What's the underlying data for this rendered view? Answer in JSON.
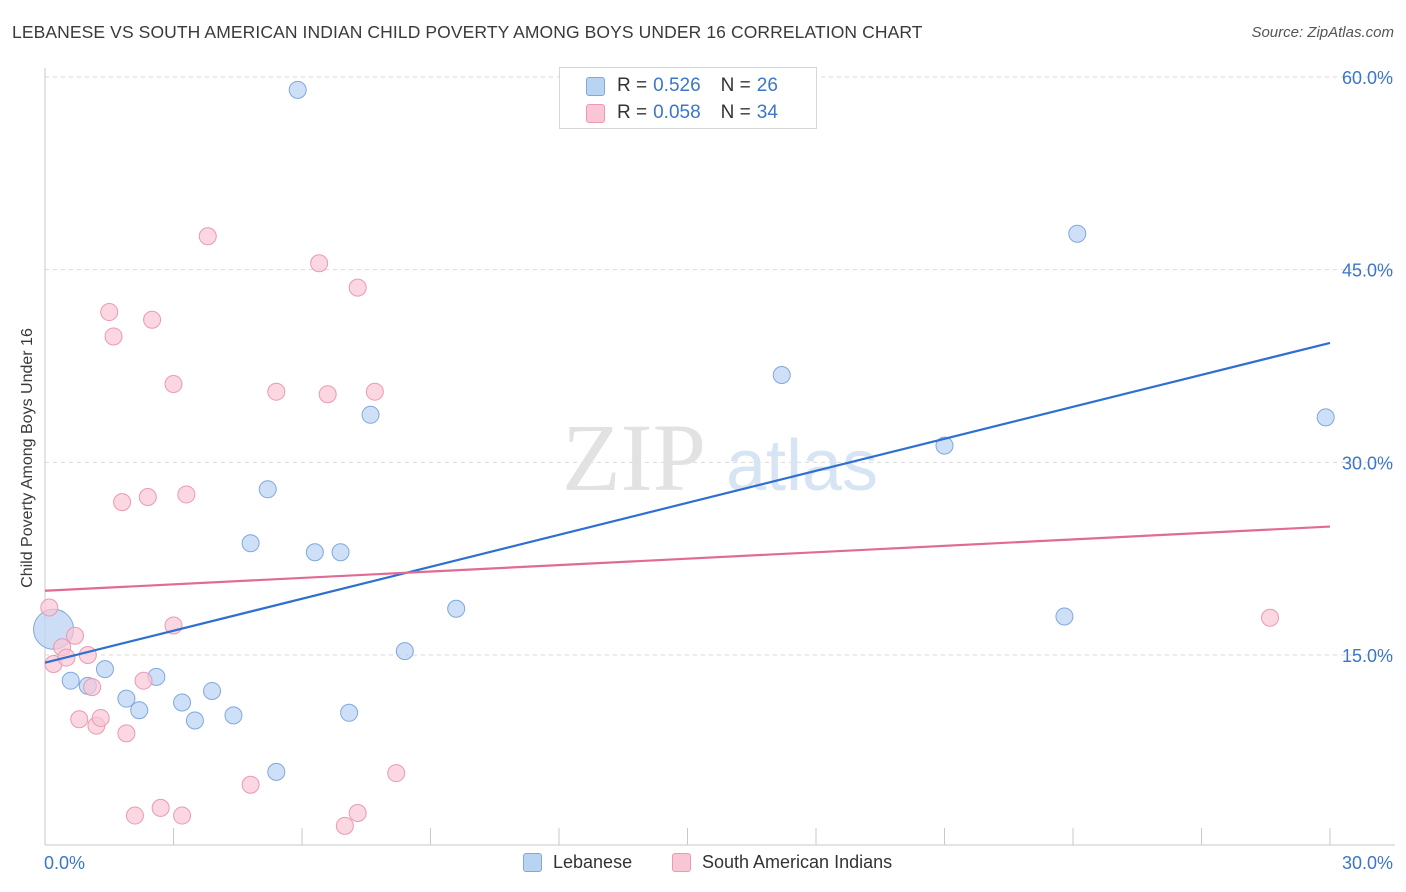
{
  "title": "LEBANESE VS SOUTH AMERICAN INDIAN CHILD POVERTY AMONG BOYS UNDER 16 CORRELATION CHART",
  "source": "Source: ZipAtlas.com",
  "watermark": {
    "zip": "ZIP",
    "atlas": "atlas"
  },
  "legend": {
    "rows": [
      {
        "r_label": "R =",
        "r_value": "0.526",
        "n_label": "N =",
        "n_value": "26"
      },
      {
        "r_label": "R =",
        "r_value": "0.058",
        "n_label": "N =",
        "n_value": "34"
      }
    ]
  },
  "bottom_legend": {
    "series1": "Lebanese",
    "series2": "South American Indians"
  },
  "colors": {
    "blue_fill": "#b9d3f3",
    "blue_stroke": "#7fa8dc",
    "blue_line": "#2f6fcf",
    "pink_fill": "#f8c6d4",
    "pink_stroke": "#ec99b2",
    "pink_line": "#e06b95",
    "tick_label": "#3b76c9",
    "grid": "#d9d9d9"
  },
  "chart_data": {
    "type": "scatter",
    "title": "LEBANESE VS SOUTH AMERICAN INDIAN CHILD POVERTY AMONG BOYS UNDER 16 CORRELATION CHART",
    "xlabel": "",
    "ylabel": "Child Poverty Among Boys Under 16",
    "xlim": [
      0,
      30
    ],
    "ylim": [
      0,
      63
    ],
    "x_tick_labels": [
      "0.0%",
      "30.0%"
    ],
    "y_ticks": [
      15,
      30,
      45,
      60
    ],
    "y_tick_labels": [
      "15.0%",
      "30.0%",
      "45.0%",
      "60.0%"
    ],
    "series": [
      {
        "name": "Lebanese",
        "R": 0.526,
        "N": 26,
        "trend": {
          "x": [
            0,
            30
          ],
          "y": [
            14.4,
            39.3
          ]
        },
        "points": [
          {
            "x": 0.2,
            "y": 17.0,
            "big": true
          },
          {
            "x": 0.6,
            "y": 13.0
          },
          {
            "x": 1.0,
            "y": 12.6
          },
          {
            "x": 1.4,
            "y": 13.9
          },
          {
            "x": 1.9,
            "y": 11.6
          },
          {
            "x": 2.2,
            "y": 10.7
          },
          {
            "x": 2.6,
            "y": 13.3
          },
          {
            "x": 3.2,
            "y": 11.3
          },
          {
            "x": 3.5,
            "y": 9.9
          },
          {
            "x": 3.9,
            "y": 12.2
          },
          {
            "x": 4.4,
            "y": 10.3
          },
          {
            "x": 4.8,
            "y": 23.7
          },
          {
            "x": 5.2,
            "y": 27.9
          },
          {
            "x": 5.4,
            "y": 5.9
          },
          {
            "x": 5.9,
            "y": 59.0
          },
          {
            "x": 6.3,
            "y": 23.0
          },
          {
            "x": 6.9,
            "y": 23.0
          },
          {
            "x": 7.1,
            "y": 10.5
          },
          {
            "x": 7.6,
            "y": 33.7
          },
          {
            "x": 8.4,
            "y": 15.3
          },
          {
            "x": 9.6,
            "y": 18.6
          },
          {
            "x": 17.2,
            "y": 36.8
          },
          {
            "x": 21.0,
            "y": 31.3
          },
          {
            "x": 23.8,
            "y": 18.0
          },
          {
            "x": 24.1,
            "y": 47.8
          },
          {
            "x": 29.9,
            "y": 33.5
          }
        ]
      },
      {
        "name": "South American Indians",
        "R": 0.058,
        "N": 34,
        "trend": {
          "x": [
            0,
            30
          ],
          "y": [
            20.0,
            25.0
          ]
        },
        "points": [
          {
            "x": 0.1,
            "y": 18.7
          },
          {
            "x": 0.2,
            "y": 14.3
          },
          {
            "x": 0.4,
            "y": 15.6
          },
          {
            "x": 0.5,
            "y": 14.8
          },
          {
            "x": 0.7,
            "y": 16.5
          },
          {
            "x": 0.8,
            "y": 10.0
          },
          {
            "x": 1.0,
            "y": 15.0
          },
          {
            "x": 1.1,
            "y": 12.5
          },
          {
            "x": 1.2,
            "y": 9.5
          },
          {
            "x": 1.3,
            "y": 10.1
          },
          {
            "x": 1.5,
            "y": 41.7
          },
          {
            "x": 1.6,
            "y": 39.8
          },
          {
            "x": 1.8,
            "y": 26.9
          },
          {
            "x": 1.9,
            "y": 8.9
          },
          {
            "x": 2.1,
            "y": 2.5
          },
          {
            "x": 2.3,
            "y": 13.0
          },
          {
            "x": 2.4,
            "y": 27.3
          },
          {
            "x": 2.5,
            "y": 41.1
          },
          {
            "x": 2.7,
            "y": 3.1
          },
          {
            "x": 3.0,
            "y": 36.1
          },
          {
            "x": 3.0,
            "y": 17.3
          },
          {
            "x": 3.2,
            "y": 2.5
          },
          {
            "x": 3.3,
            "y": 27.5
          },
          {
            "x": 3.8,
            "y": 47.6
          },
          {
            "x": 4.8,
            "y": 4.9
          },
          {
            "x": 5.4,
            "y": 35.5
          },
          {
            "x": 6.4,
            "y": 45.5
          },
          {
            "x": 6.6,
            "y": 35.3
          },
          {
            "x": 7.0,
            "y": 1.7
          },
          {
            "x": 7.3,
            "y": 2.7
          },
          {
            "x": 7.3,
            "y": 43.6
          },
          {
            "x": 7.7,
            "y": 35.5
          },
          {
            "x": 8.2,
            "y": 5.8
          },
          {
            "x": 28.6,
            "y": 17.9
          }
        ]
      }
    ]
  }
}
